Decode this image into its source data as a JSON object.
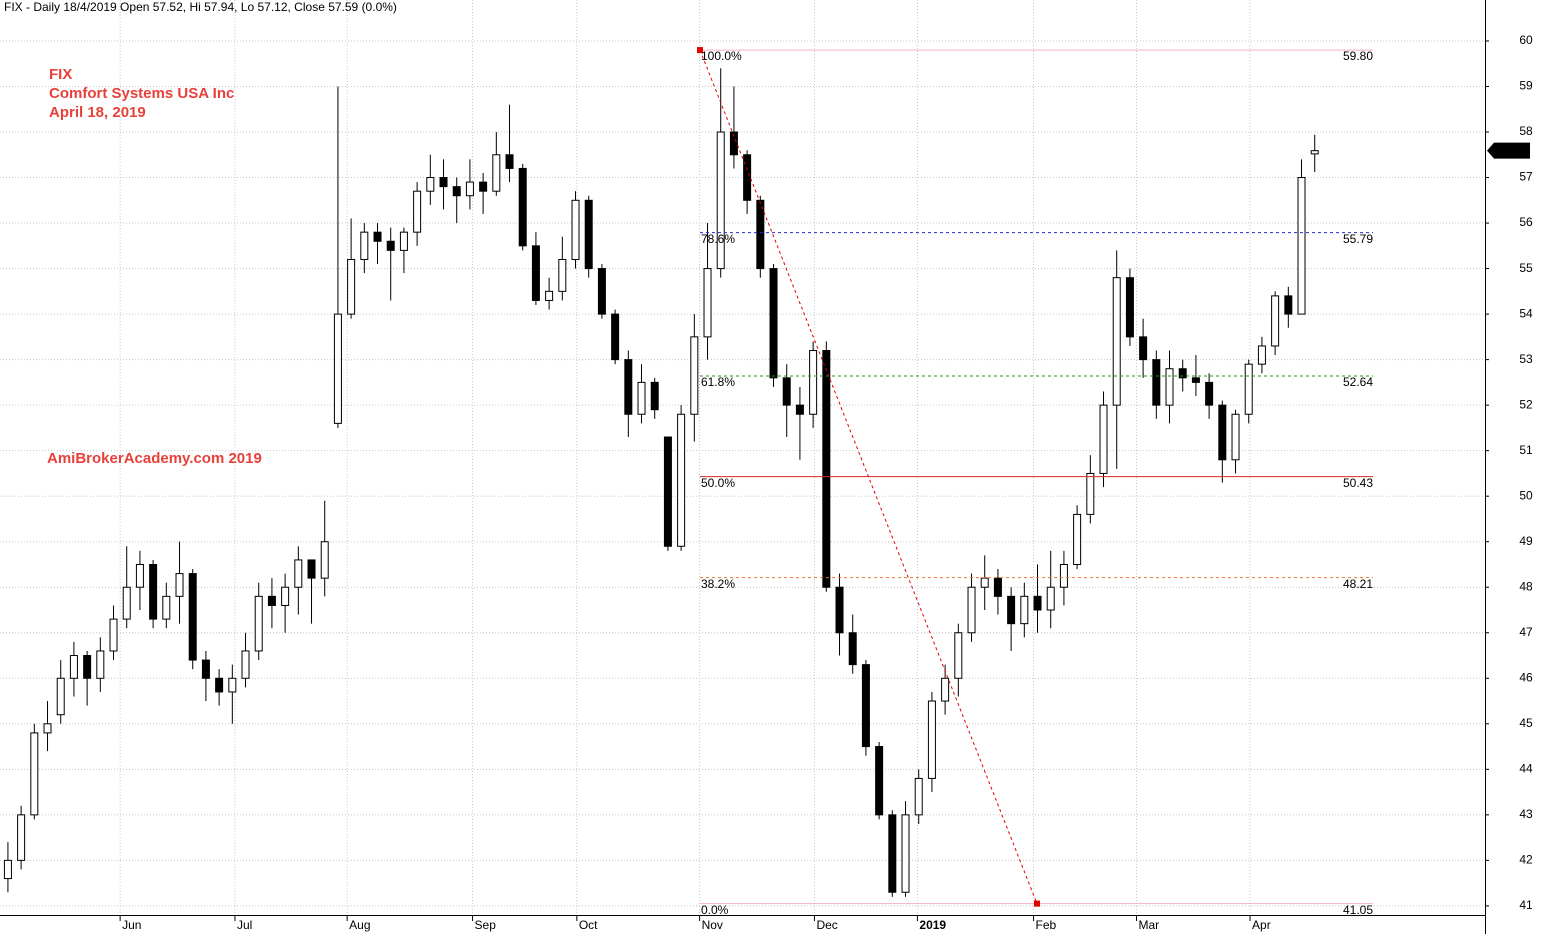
{
  "header": "FIX - Daily 18/4/2019 Open 57.52, Hi 57.94, Lo 57.12, Close 57.59 (0.0%)",
  "chart_data": {
    "type": "candlestick",
    "annotations": [
      "FIX",
      "Comfort Systems USA Inc",
      "April 18, 2019",
      "AmiBrokerAcademy.com 2019"
    ],
    "categories": [
      null,
      null,
      null,
      null,
      null,
      null,
      null,
      null,
      null,
      null,
      null,
      null,
      null,
      null,
      null,
      null,
      null,
      null,
      null,
      null,
      null,
      null,
      null,
      null,
      null,
      null,
      null,
      null,
      null,
      null,
      null,
      null,
      null,
      null,
      null,
      null,
      null,
      null,
      null,
      null,
      null,
      null,
      null,
      null,
      null,
      null,
      null,
      null,
      null,
      null,
      null,
      null,
      null,
      null,
      null,
      null,
      null,
      null,
      null,
      null,
      null,
      null,
      null,
      null,
      null,
      null,
      null,
      null,
      null,
      null,
      null,
      null,
      null,
      null,
      null,
      null,
      null,
      null,
      null,
      null,
      null,
      null,
      null,
      null,
      null,
      null,
      null,
      null,
      null,
      null,
      null,
      null,
      null,
      null,
      null,
      null,
      null,
      null,
      null,
      null
    ],
    "open": [
      41.6,
      42.0,
      43.0,
      44.8,
      45.2,
      46.0,
      46.5,
      46.0,
      46.6,
      47.3,
      48.0,
      48.5,
      47.3,
      47.8,
      48.3,
      46.4,
      46.0,
      45.7,
      46.0,
      46.6,
      47.8,
      47.6,
      48.0,
      48.6,
      48.2,
      51.6,
      54.0,
      55.2,
      55.8,
      55.6,
      55.4,
      55.8,
      56.7,
      57.0,
      56.8,
      56.6,
      56.9,
      56.7,
      57.5,
      57.2,
      55.5,
      54.3,
      54.5,
      55.2,
      56.5,
      55.0,
      54.0,
      53.0,
      51.8,
      52.5,
      51.3,
      48.9,
      51.8,
      53.5,
      55.0,
      58.0,
      57.5,
      56.5,
      55.0,
      52.6,
      52.0,
      51.8,
      53.2,
      48.0,
      47.0,
      46.3,
      44.5,
      43.0,
      41.3,
      43.0,
      43.8,
      45.5,
      46.0,
      47.0,
      48.0,
      48.2,
      47.8,
      47.2,
      47.8,
      47.5,
      48.0,
      48.5,
      49.6,
      50.5,
      52.0,
      54.8,
      53.5,
      53.0,
      52.0,
      52.8,
      52.6,
      52.5,
      52.0,
      50.8,
      51.8,
      52.9,
      53.3,
      54.4,
      54.0,
      57.52
    ],
    "high": [
      42.4,
      43.2,
      45.0,
      45.5,
      46.4,
      46.8,
      46.6,
      46.9,
      47.6,
      48.9,
      48.8,
      48.6,
      48.1,
      49.0,
      48.4,
      46.6,
      46.2,
      46.3,
      47.0,
      48.1,
      48.2,
      48.3,
      48.9,
      48.6,
      49.9,
      59.0,
      56.1,
      56.0,
      56.0,
      55.9,
      55.9,
      56.9,
      57.5,
      57.4,
      57.0,
      57.4,
      57.1,
      58.0,
      58.6,
      57.3,
      55.8,
      54.8,
      55.7,
      56.7,
      56.6,
      55.1,
      54.1,
      53.2,
      52.9,
      52.6,
      51.3,
      52.0,
      54.0,
      56.0,
      59.4,
      59.0,
      57.6,
      56.6,
      55.1,
      52.9,
      52.4,
      53.4,
      53.4,
      48.3,
      47.4,
      46.4,
      44.6,
      43.1,
      43.3,
      44.0,
      45.7,
      46.3,
      47.2,
      48.3,
      48.7,
      48.4,
      48.0,
      48.1,
      48.5,
      48.8,
      48.8,
      49.8,
      50.9,
      52.3,
      55.4,
      55.0,
      53.9,
      53.2,
      53.2,
      53.0,
      53.1,
      52.7,
      52.1,
      51.9,
      53.0,
      53.5,
      54.5,
      54.6,
      57.4,
      57.94
    ],
    "low": [
      41.3,
      41.8,
      42.9,
      44.4,
      45.0,
      45.6,
      45.4,
      45.7,
      46.4,
      47.1,
      47.5,
      47.1,
      47.1,
      47.2,
      46.2,
      45.5,
      45.4,
      45.0,
      45.8,
      46.4,
      47.1,
      47.0,
      47.4,
      47.2,
      47.8,
      51.5,
      53.9,
      54.9,
      55.1,
      54.3,
      54.9,
      55.5,
      56.4,
      56.3,
      56.0,
      56.3,
      56.2,
      56.6,
      56.9,
      55.4,
      54.2,
      54.1,
      54.3,
      55.0,
      54.8,
      53.9,
      52.9,
      51.3,
      51.6,
      51.7,
      48.8,
      48.8,
      51.2,
      53.0,
      54.8,
      57.2,
      56.2,
      54.8,
      52.4,
      51.3,
      50.8,
      51.5,
      47.9,
      46.5,
      46.1,
      44.3,
      42.9,
      41.2,
      41.2,
      42.8,
      43.5,
      45.2,
      45.6,
      46.8,
      47.5,
      47.4,
      46.6,
      46.9,
      47.0,
      47.1,
      47.6,
      48.4,
      49.4,
      50.2,
      50.6,
      53.3,
      52.6,
      51.7,
      51.6,
      52.3,
      52.2,
      51.7,
      50.3,
      50.5,
      51.6,
      52.7,
      53.1,
      53.7,
      54.0,
      57.12
    ],
    "close": [
      42.0,
      43.0,
      44.8,
      45.0,
      46.0,
      46.5,
      46.0,
      46.6,
      47.3,
      48.0,
      48.5,
      47.3,
      47.8,
      48.3,
      46.4,
      46.0,
      45.7,
      46.0,
      46.6,
      47.8,
      47.6,
      48.0,
      48.6,
      48.2,
      49.0,
      54.0,
      55.2,
      55.8,
      55.6,
      55.4,
      55.8,
      56.7,
      57.0,
      56.8,
      56.6,
      56.9,
      56.7,
      57.5,
      57.2,
      55.5,
      54.3,
      54.5,
      55.2,
      56.5,
      55.0,
      54.0,
      53.0,
      51.8,
      52.5,
      51.9,
      48.9,
      51.8,
      53.5,
      55.0,
      58.0,
      57.5,
      56.5,
      55.0,
      52.6,
      52.0,
      51.8,
      53.2,
      48.0,
      47.0,
      46.3,
      44.5,
      43.0,
      41.3,
      43.0,
      43.8,
      45.5,
      46.0,
      47.0,
      48.0,
      48.2,
      47.8,
      47.2,
      47.8,
      47.5,
      48.0,
      48.5,
      49.6,
      50.5,
      52.0,
      54.8,
      53.5,
      53.0,
      52.0,
      52.8,
      52.6,
      52.5,
      52.0,
      50.8,
      51.8,
      52.9,
      53.3,
      54.4,
      54.0,
      57.0,
      57.59
    ],
    "up_color": "#ffffff",
    "down_color": "#000000",
    "xlim": [
      -0.6,
      111.9
    ],
    "xticks": [
      {
        "value": 8.5,
        "label": "Jun"
      },
      {
        "value": 17.2,
        "label": "Jul"
      },
      {
        "value": 25.7,
        "label": "Aug"
      },
      {
        "value": 35.2,
        "label": "Sep"
      },
      {
        "value": 43.1,
        "label": "Oct"
      },
      {
        "value": 52.4,
        "label": "Nov"
      },
      {
        "value": 61.1,
        "label": "Dec"
      },
      {
        "value": 68.9,
        "label": "2019"
      },
      {
        "value": 77.7,
        "label": "Feb"
      },
      {
        "value": 85.5,
        "label": "Mar"
      },
      {
        "value": 94.1,
        "label": "Apr"
      }
    ],
    "ylim": [
      40.8,
      60.9
    ],
    "yticks": [
      41,
      42,
      43,
      44,
      45,
      46,
      47,
      48,
      49,
      50,
      51,
      52,
      53,
      54,
      55,
      56,
      57,
      58,
      59,
      60
    ],
    "grid": true,
    "fib_levels": [
      {
        "name": "100.0%",
        "value": 59.8,
        "value_label": "59.80",
        "color": "#f4b3c0",
        "dashed": false
      },
      {
        "name": "78.6%",
        "value": 55.79,
        "color": "#2a2ad4",
        "dashed": true
      },
      {
        "name": "61.8%",
        "value": 52.64,
        "color": "#1a9a1a",
        "dashed": true
      },
      {
        "name": "50.0%",
        "value": 50.43,
        "color": "#d42a2a",
        "dashed": false
      },
      {
        "name": "38.2%",
        "value": 48.21,
        "color": "#f07030",
        "dashed": true
      },
      {
        "name": "0.0%",
        "value": 41.05,
        "value_label": "41.05",
        "color": "#f4b3c0",
        "dashed": false
      }
    ],
    "trend_color": "#e00000"
  }
}
